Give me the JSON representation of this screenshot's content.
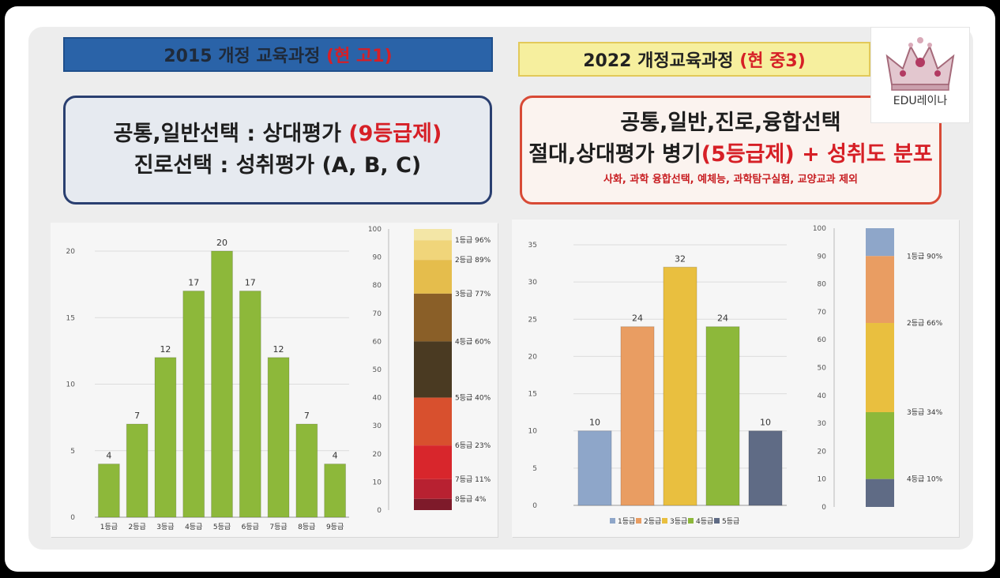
{
  "left": {
    "banner_title": "2015 개정 교육과정",
    "banner_highlight": "(현 고1)",
    "line1_text": "공통,일반선택 : 상대평가",
    "line1_highlight": "(9등급제)",
    "line2_text": "진로선택 : 성취평가 (A, B, C)"
  },
  "right": {
    "banner_title": "2022 개정교육과정",
    "banner_highlight": "(현 중3)",
    "line1_text": "공통,일반,진로,융합선택",
    "line2_text_a": "절대,상대평가 병기",
    "line2_highlight": "(5등급제) + 성취도 분포",
    "note": "사화, 과학 융합선택, 예체능, 과학탐구실험, 교양교과 제외"
  },
  "logo": {
    "text": "EDU레이나",
    "icon": "crown-icon"
  },
  "chart_data": [
    {
      "type": "bar",
      "categories": [
        "1등급",
        "2등급",
        "3등급",
        "4등급",
        "5등급",
        "6등급",
        "7등급",
        "8등급",
        "9등급"
      ],
      "values": [
        4,
        7,
        12,
        17,
        20,
        17,
        12,
        7,
        4
      ],
      "ylim": [
        0,
        20
      ],
      "yticks": [
        0,
        5,
        10,
        15,
        20
      ],
      "color": "#8db83a",
      "grid": true
    },
    {
      "type": "bar",
      "stacked": true,
      "ylim": [
        0,
        100
      ],
      "yticks": [
        0,
        10,
        20,
        30,
        40,
        50,
        60,
        70,
        80,
        90,
        100
      ],
      "segments": [
        {
          "label": "1등급 96%",
          "from": 96,
          "to": 100,
          "color": "#f3e6a6"
        },
        {
          "label": "2등급 89%",
          "from": 89,
          "to": 96,
          "color": "#f0d57a"
        },
        {
          "label": "3등급 77%",
          "from": 77,
          "to": 89,
          "color": "#e5bd4c"
        },
        {
          "label": "4등급 60%",
          "from": 60,
          "to": 77,
          "color": "#8a5f28"
        },
        {
          "label": "5등급 40%",
          "from": 40,
          "to": 60,
          "color": "#4a3a22"
        },
        {
          "label": "6등급 23%",
          "from": 23,
          "to": 40,
          "color": "#d8502e"
        },
        {
          "label": "7등급 11%",
          "from": 11,
          "to": 23,
          "color": "#d8262c"
        },
        {
          "label": "8등급 4%",
          "from": 4,
          "to": 11,
          "color": "#b82131"
        },
        {
          "label": "",
          "from": 0,
          "to": 4,
          "color": "#7e1a2a"
        }
      ]
    },
    {
      "type": "bar",
      "categories": [
        "1등급",
        "2등급",
        "3등급",
        "4등급",
        "5등급"
      ],
      "values": [
        10,
        24,
        32,
        24,
        10
      ],
      "colors": [
        "#8ea6c9",
        "#e99d62",
        "#e9bf3f",
        "#8db83a",
        "#5f6b85"
      ],
      "ylim": [
        0,
        35
      ],
      "yticks": [
        0,
        5,
        10,
        15,
        20,
        25,
        30,
        35
      ],
      "legend": "bottom",
      "grid": true
    },
    {
      "type": "bar",
      "stacked": true,
      "ylim": [
        0,
        100
      ],
      "yticks": [
        0,
        10,
        20,
        30,
        40,
        50,
        60,
        70,
        80,
        90,
        100
      ],
      "segments": [
        {
          "label": "1등급 90%",
          "from": 90,
          "to": 100,
          "color": "#8ea6c9"
        },
        {
          "label": "2등급 66%",
          "from": 66,
          "to": 90,
          "color": "#e99d62"
        },
        {
          "label": "3등급 34%",
          "from": 34,
          "to": 66,
          "color": "#e9bf3f"
        },
        {
          "label": "4등급 10%",
          "from": 10,
          "to": 34,
          "color": "#8db83a"
        },
        {
          "label": "",
          "from": 0,
          "to": 10,
          "color": "#5f6b85"
        }
      ]
    }
  ]
}
